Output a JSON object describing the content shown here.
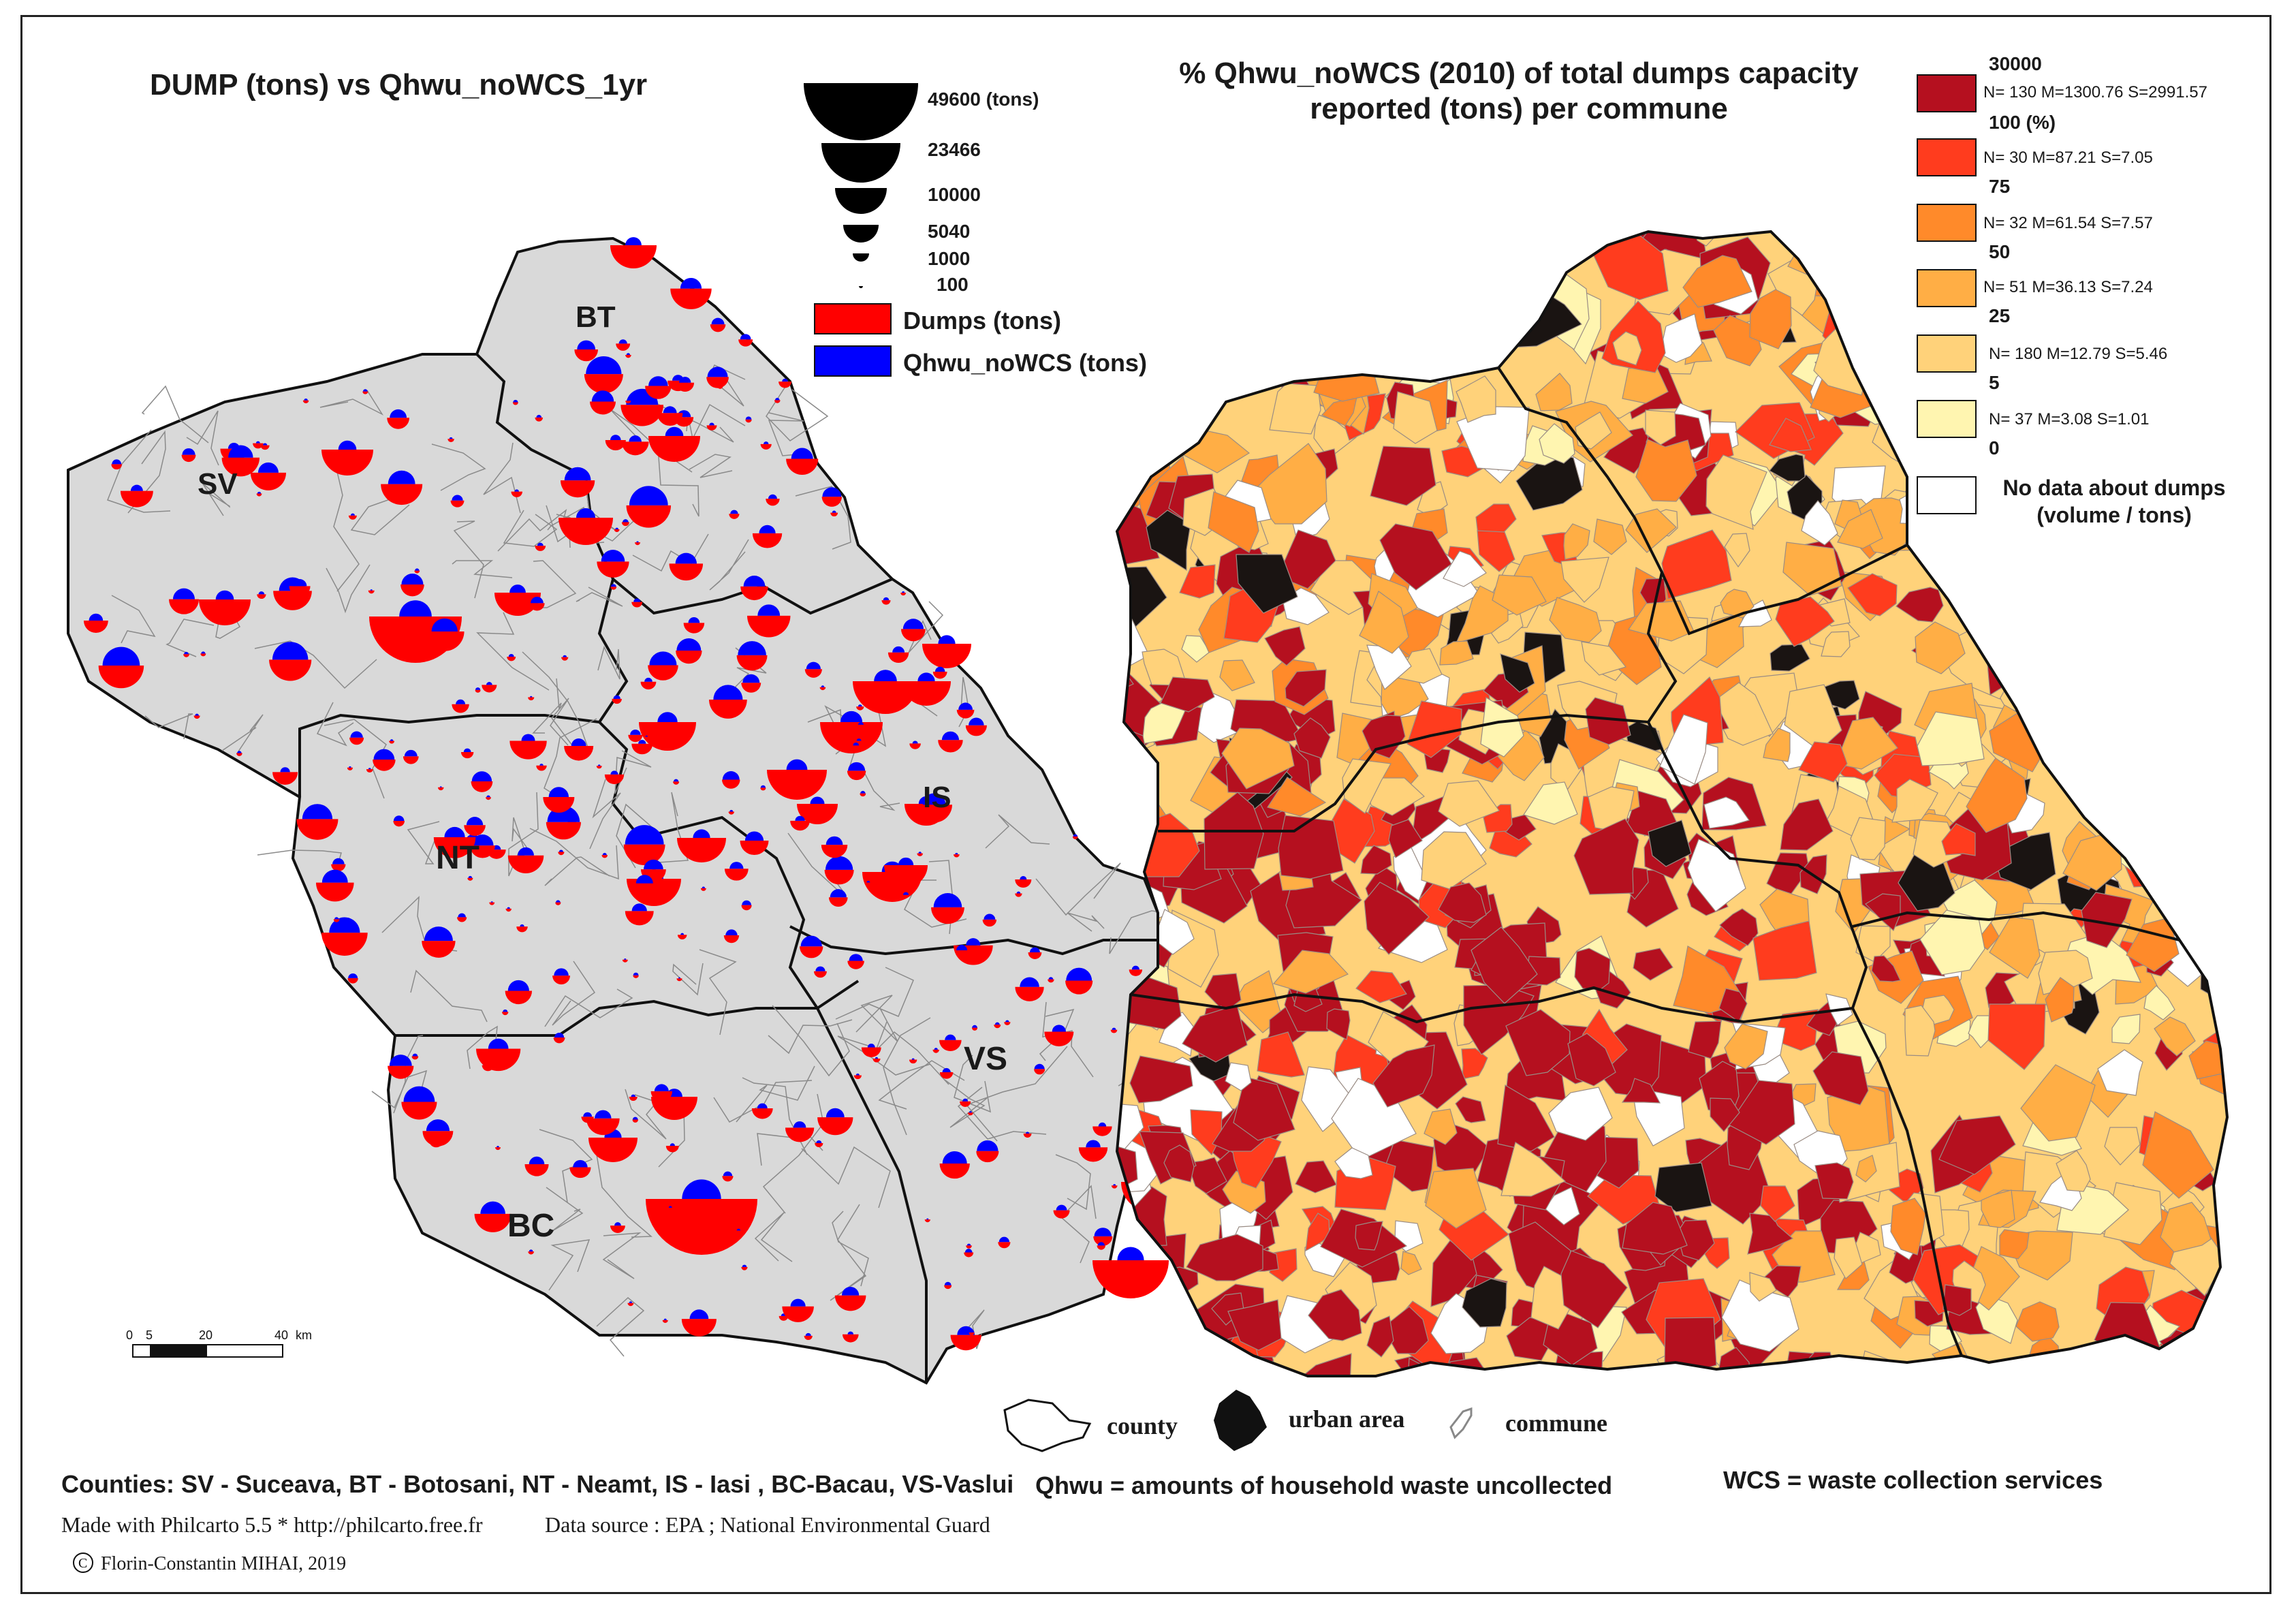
{
  "left_map": {
    "title": "DUMP (tons) vs Qhwu_noWCS_1yr",
    "proportional_legend": [
      "49600 (tons)",
      "23466",
      "10000",
      "5040",
      "1000",
      "100"
    ],
    "dumps_label": "Dumps (tons)",
    "qhwu_label": "Qhwu_noWCS (tons)",
    "dumps_color": "#ff0000",
    "qhwu_color": "#0000ff",
    "county_fill": "#d9d9d9",
    "counties": [
      "SV",
      "BT",
      "NT",
      "IS",
      "BC",
      "VS"
    ],
    "scale_ticks": [
      "0",
      "5",
      "20",
      "40",
      "km"
    ]
  },
  "right_map": {
    "title_line1": "% Qhwu_noWCS (2010)  of   total dumps capacity",
    "title_line2": "reported (tons) per commune",
    "classes": [
      {
        "top": "30000",
        "stats": "N= 130  M=1300.76  S=2991.57",
        "bottom": "100 (%)",
        "color": "#b5101f"
      },
      {
        "stats": "N= 30  M=87.21  S=7.05",
        "bottom": "75",
        "color": "#ff3c1e"
      },
      {
        "stats": "N= 32  M=61.54  S=7.57",
        "bottom": "50",
        "color": "#ff8a2a"
      },
      {
        "stats": "N= 51  M=36.13  S=7.24",
        "bottom": "25",
        "color": "#ffae45"
      },
      {
        "stats": "N= 180  M=12.79  S=5.46",
        "bottom": "5",
        "color": "#ffd27a"
      },
      {
        "stats": "N= 37  M=3.08  S=1.01",
        "bottom": "0",
        "color": "#fff5b0"
      }
    ],
    "nodata_line1": "No data about dumps",
    "nodata_line2": "(volume / tons)",
    "urban_color": "#1a1412"
  },
  "symbols": {
    "county": "county",
    "urban": "urban area",
    "commune": "commune"
  },
  "footer": {
    "counties": "Counties: SV - Suceava, BT - Botosani, NT - Neamt, IS - Iasi , BC-Bacau, VS-Vaslui",
    "qhwu_def": "Qhwu = amounts of household waste uncollected",
    "wcs_def": "WCS = waste collection services",
    "made_with": "Made with Philcarto 5.5 * http://philcarto.free.fr",
    "source": "Data source : EPA ; National Environmental Guard",
    "copyright": "Florin-Constantin MIHAI, 2019"
  }
}
